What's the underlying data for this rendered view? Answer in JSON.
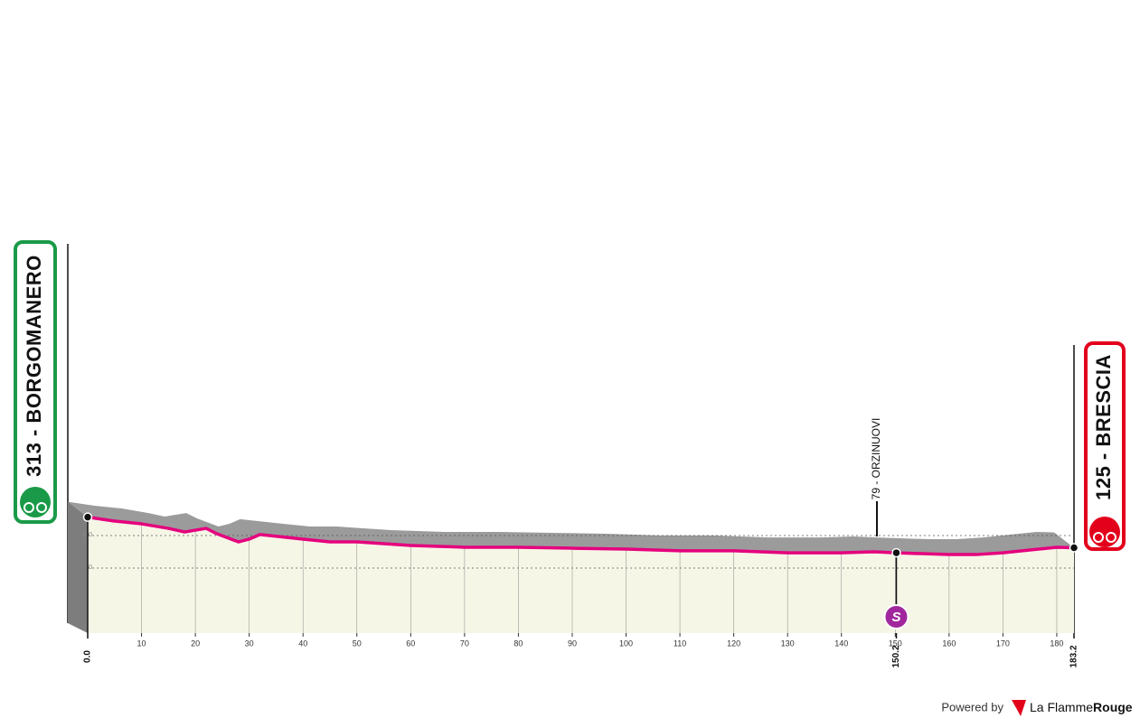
{
  "chart_data": {
    "type": "area",
    "x": [
      0,
      5,
      10,
      15,
      18,
      20,
      22,
      24,
      28,
      30,
      32,
      40,
      45,
      50,
      60,
      70,
      80,
      90,
      100,
      110,
      120,
      130,
      140,
      146,
      150.2,
      160,
      165,
      170,
      175,
      180,
      183.2
    ],
    "values": [
      313,
      289,
      272,
      244,
      222,
      233,
      244,
      211,
      161,
      178,
      206,
      178,
      161,
      161,
      139,
      128,
      128,
      122,
      117,
      106,
      106,
      94,
      94,
      100,
      94,
      83,
      83,
      94,
      111,
      128,
      125
    ],
    "color": "#e5007e",
    "fill": "#f6f6e6",
    "shade": "#9b9b9b",
    "xlim": [
      0,
      183.2
    ],
    "xticks": [
      10,
      20,
      30,
      40,
      50,
      60,
      70,
      80,
      90,
      100,
      110,
      120,
      130,
      140,
      150,
      160,
      170,
      180
    ],
    "km_labels": [
      {
        "value": 0,
        "label": "0.0"
      },
      {
        "value": 150.2,
        "label": "150.2"
      },
      {
        "value": 183.2,
        "label": "183.2"
      }
    ],
    "ylim": [
      -400,
      2000
    ],
    "yticks": [
      0,
      200
    ],
    "grid": true,
    "start_label": "313 - BORGOMANERO",
    "finish_label": "125 - BRESCIA",
    "waypoint_label": "79 - ORZINUOVI",
    "sprint_label": "S"
  },
  "footer": {
    "powered": "Powered by",
    "brand": "La Flamme",
    "brand_bold": "Rouge"
  }
}
